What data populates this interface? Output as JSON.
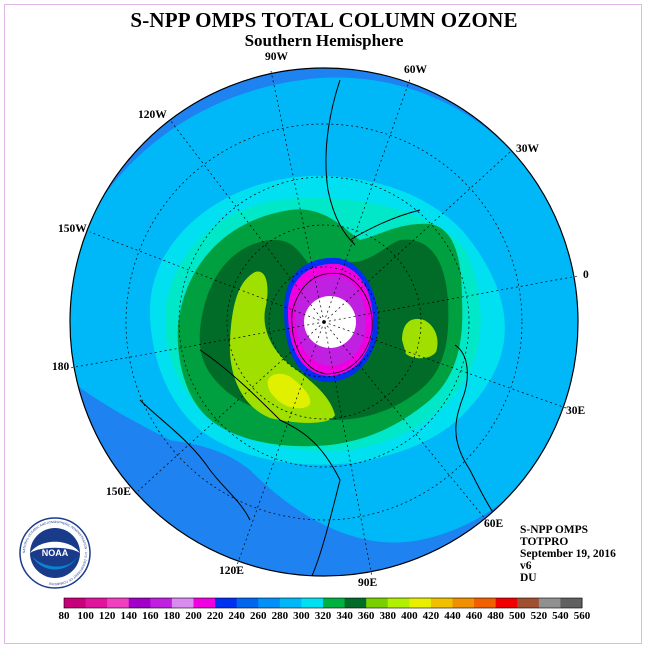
{
  "header": {
    "title": "S-NPP OMPS TOTAL COLUMN OZONE",
    "subtitle": "Southern Hemisphere"
  },
  "longitude_labels": {
    "lon_90w": "90W",
    "lon_60w": "60W",
    "lon_120w": "120W",
    "lon_30w": "30W",
    "lon_150w": "150W",
    "lon_0": "0",
    "lon_180": "180",
    "lon_30e": "30E",
    "lon_150e": "150E",
    "lon_60e": "60E",
    "lon_120e": "120E",
    "lon_90e": "90E"
  },
  "info_block": {
    "line1": "S-NPP OMPS",
    "line2": "TOTPRO",
    "line3": "September 19, 2016",
    "line4": "v6",
    "line5": "DU"
  },
  "logo": {
    "text": "NOAA",
    "ring_text": "NATIONAL OCEANIC AND ATMOSPHERIC ADMINISTRATION · U.S. DEPARTMENT OF COMMERCE"
  },
  "colorbar": {
    "ticks": [
      "80",
      "100",
      "120",
      "140",
      "160",
      "180",
      "200",
      "220",
      "240",
      "260",
      "280",
      "300",
      "320",
      "340",
      "360",
      "380",
      "400",
      "420",
      "440",
      "460",
      "480",
      "500",
      "520",
      "540",
      "560"
    ],
    "colors": [
      "#c8007a",
      "#e0149c",
      "#f040c0",
      "#a000c8",
      "#c020e0",
      "#d88cf0",
      "#f000e0",
      "#0030f0",
      "#0066f0",
      "#0090f8",
      "#00b8f8",
      "#00e0f0",
      "#00b040",
      "#006c28",
      "#78d000",
      "#b0f000",
      "#e8f000",
      "#f0c000",
      "#f09000",
      "#f06000",
      "#f00000",
      "#a05030",
      "#909090",
      "#606060"
    ],
    "units": "DU"
  },
  "map_colors": {
    "ocean_low": "#1e82f0",
    "level_280": "#00b8f8",
    "level_300": "#00e0f0",
    "level_320": "#00e8c8",
    "level_340": "#00a040",
    "level_360": "#006c28",
    "level_380": "#a0e000",
    "level_400": "#e0f000",
    "level_hole": "#f000e0",
    "no_data": "#ffffff",
    "coast": "#000000"
  }
}
